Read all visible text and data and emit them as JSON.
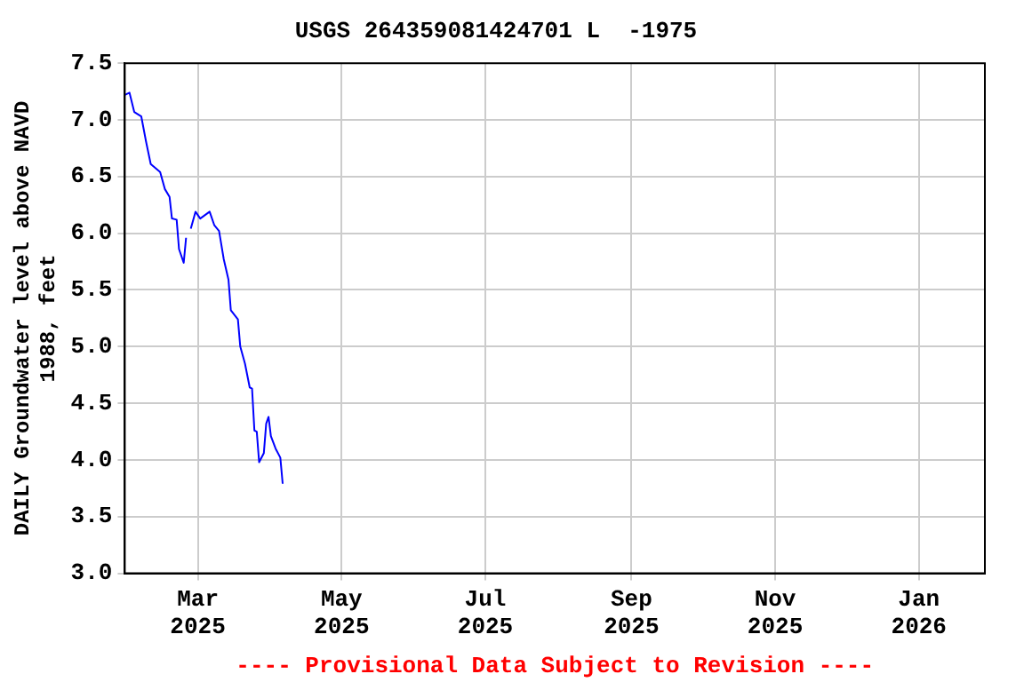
{
  "chart_data": {
    "type": "line",
    "title": "USGS 264359081424701 L  -1975",
    "ylabel": "DAILY Groundwater level above NAVD\n1988, feet",
    "annotations": [
      "---- Provisional Data Subject to Revision ----"
    ],
    "x": [
      "2025-01-29",
      "2025-01-31",
      "2025-02-02",
      "2025-02-05",
      "2025-02-07",
      "2025-02-09",
      "2025-02-13",
      "2025-02-15",
      "2025-02-17",
      "2025-02-18",
      "2025-02-20",
      "2025-02-21",
      "2025-02-23",
      "2025-02-24",
      "2025-02-25",
      "2025-02-26",
      "2025-02-28",
      "2025-03-02",
      "2025-03-06",
      "2025-03-08",
      "2025-03-10",
      "2025-03-12",
      "2025-03-14",
      "2025-03-15",
      "2025-03-18",
      "2025-03-19",
      "2025-03-21",
      "2025-03-23",
      "2025-03-24",
      "2025-03-25",
      "2025-03-26",
      "2025-03-27",
      "2025-03-29",
      "2025-03-30",
      "2025-03-31",
      "2025-04-01",
      "2025-04-03",
      "2025-04-05",
      "2025-04-06"
    ],
    "series": [
      {
        "color": "#0000ff",
        "values": [
          7.22,
          7.24,
          7.07,
          7.03,
          6.81,
          6.61,
          6.54,
          6.39,
          6.32,
          6.13,
          6.12,
          5.86,
          5.74,
          5.96,
          null,
          6.04,
          6.19,
          6.13,
          6.19,
          6.07,
          6.02,
          5.77,
          5.59,
          5.32,
          5.24,
          5.0,
          4.85,
          4.64,
          4.63,
          4.26,
          4.25,
          3.98,
          4.06,
          4.32,
          4.38,
          4.21,
          4.1,
          4.02,
          3.79
        ]
      }
    ],
    "xlim": [
      "2025-01-29",
      "2026-01-29"
    ],
    "xticks": [
      {
        "value": "2025-03-01",
        "label": "Mar 2025"
      },
      {
        "value": "2025-05-01",
        "label": "May 2025"
      },
      {
        "value": "2025-07-01",
        "label": "Jul 2025"
      },
      {
        "value": "2025-09-01",
        "label": "Sep 2025"
      },
      {
        "value": "2025-11-01",
        "label": "Nov 2025"
      },
      {
        "value": "2026-01-01",
        "label": "Jan 2026"
      }
    ],
    "ylim": [
      3,
      7.5
    ],
    "yticks": [
      {
        "value": 3,
        "label": "3.0"
      },
      3.5,
      {
        "value": 4,
        "label": "4.0"
      },
      4.5,
      {
        "value": 5,
        "label": "5.0"
      },
      5.5,
      {
        "value": 6,
        "label": "6.0"
      },
      6.5,
      {
        "value": 7,
        "label": "7.0"
      },
      7.5
    ],
    "grid": true,
    "legend": false,
    "marker": "none",
    "line_style": "solid"
  }
}
